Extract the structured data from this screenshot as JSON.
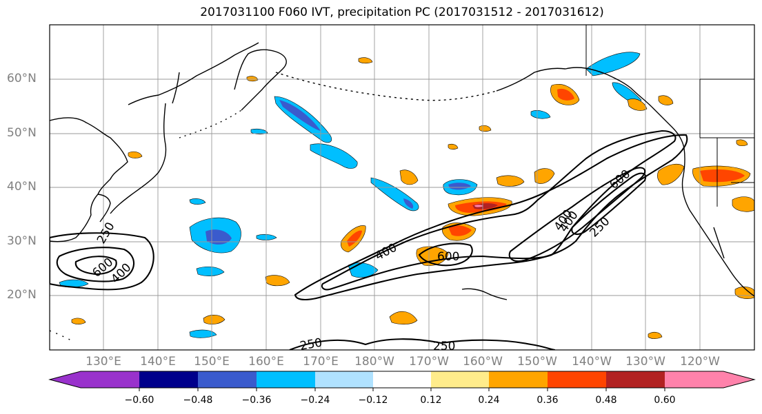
{
  "figure": {
    "title": "2017031100 F060 IVT, precipitation PC (2017031512 - 2017031612)"
  },
  "map": {
    "region": "North Pacific Ocean",
    "lat_range_deg": [
      10,
      70
    ],
    "lon_range_deg_east": [
      120,
      250
    ],
    "gridlines": true,
    "latitude_labels": [
      "20°N",
      "30°N",
      "40°N",
      "50°N",
      "60°N"
    ],
    "longitude_labels": [
      "130°E",
      "140°E",
      "150°E",
      "160°E",
      "170°E",
      "180°W",
      "170°W",
      "160°W",
      "150°W",
      "140°W",
      "130°W",
      "120°W"
    ],
    "ivt_contour_labels": [
      "250",
      "400",
      "600",
      "400",
      "250",
      "250",
      "400",
      "600",
      "600",
      "400",
      "250"
    ],
    "label_color": "#808080"
  },
  "colorbar": {
    "orientation": "horizontal",
    "extend": "both",
    "ticks": [
      "−0.60",
      "−0.48",
      "−0.36",
      "−0.24",
      "−0.12",
      "0.12",
      "0.24",
      "0.36",
      "0.48",
      "0.60"
    ],
    "colors": [
      "#9932cc",
      "#00008b",
      "#3a5bcd",
      "#00bfff",
      "#b0e2ff",
      "#ffffff",
      "#ffec8b",
      "#ffa500",
      "#ff4500",
      "#b22222",
      "#ff82ab"
    ]
  }
}
